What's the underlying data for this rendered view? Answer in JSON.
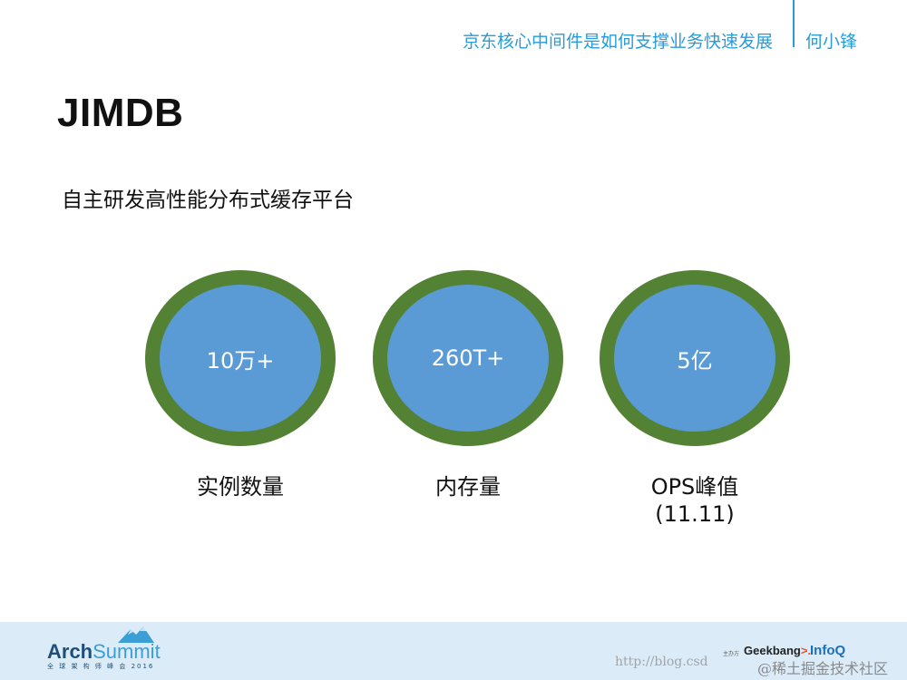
{
  "header": {
    "subtitle": "京东核心中间件是如何支撑业务快速发展",
    "author": "何小锋"
  },
  "slide": {
    "title": "JIMDB",
    "subtitle": "自主研发高性能分布式缓存平台"
  },
  "stats": [
    {
      "value": "10万+",
      "label": "实例数量",
      "label2": ""
    },
    {
      "value": "260T+",
      "label": "内存量",
      "label2": ""
    },
    {
      "value": "5亿",
      "label": "OPS峰值",
      "label2": "(11.11)"
    }
  ],
  "colors": {
    "accent": "#2a9bd8",
    "circle_fill": "#5b9bd5",
    "circle_ring": "#548235",
    "footer_bg": "#dbecf8"
  },
  "footer": {
    "brand_arch": "Arch",
    "brand_summit": "Summit",
    "brand_tagline": "全 球 架 构 师 峰 会 2016",
    "sponsor_label": "主办方",
    "sponsor_geekbang_main": "Geek",
    "sponsor_geekbang_accent": "bang",
    "sponsor_geekbang_suffix": ">.",
    "sponsor_infoq": "InfoQ",
    "watermark_url": "http://blog.csd",
    "watermark_community": "@稀土掘金技术社区"
  }
}
